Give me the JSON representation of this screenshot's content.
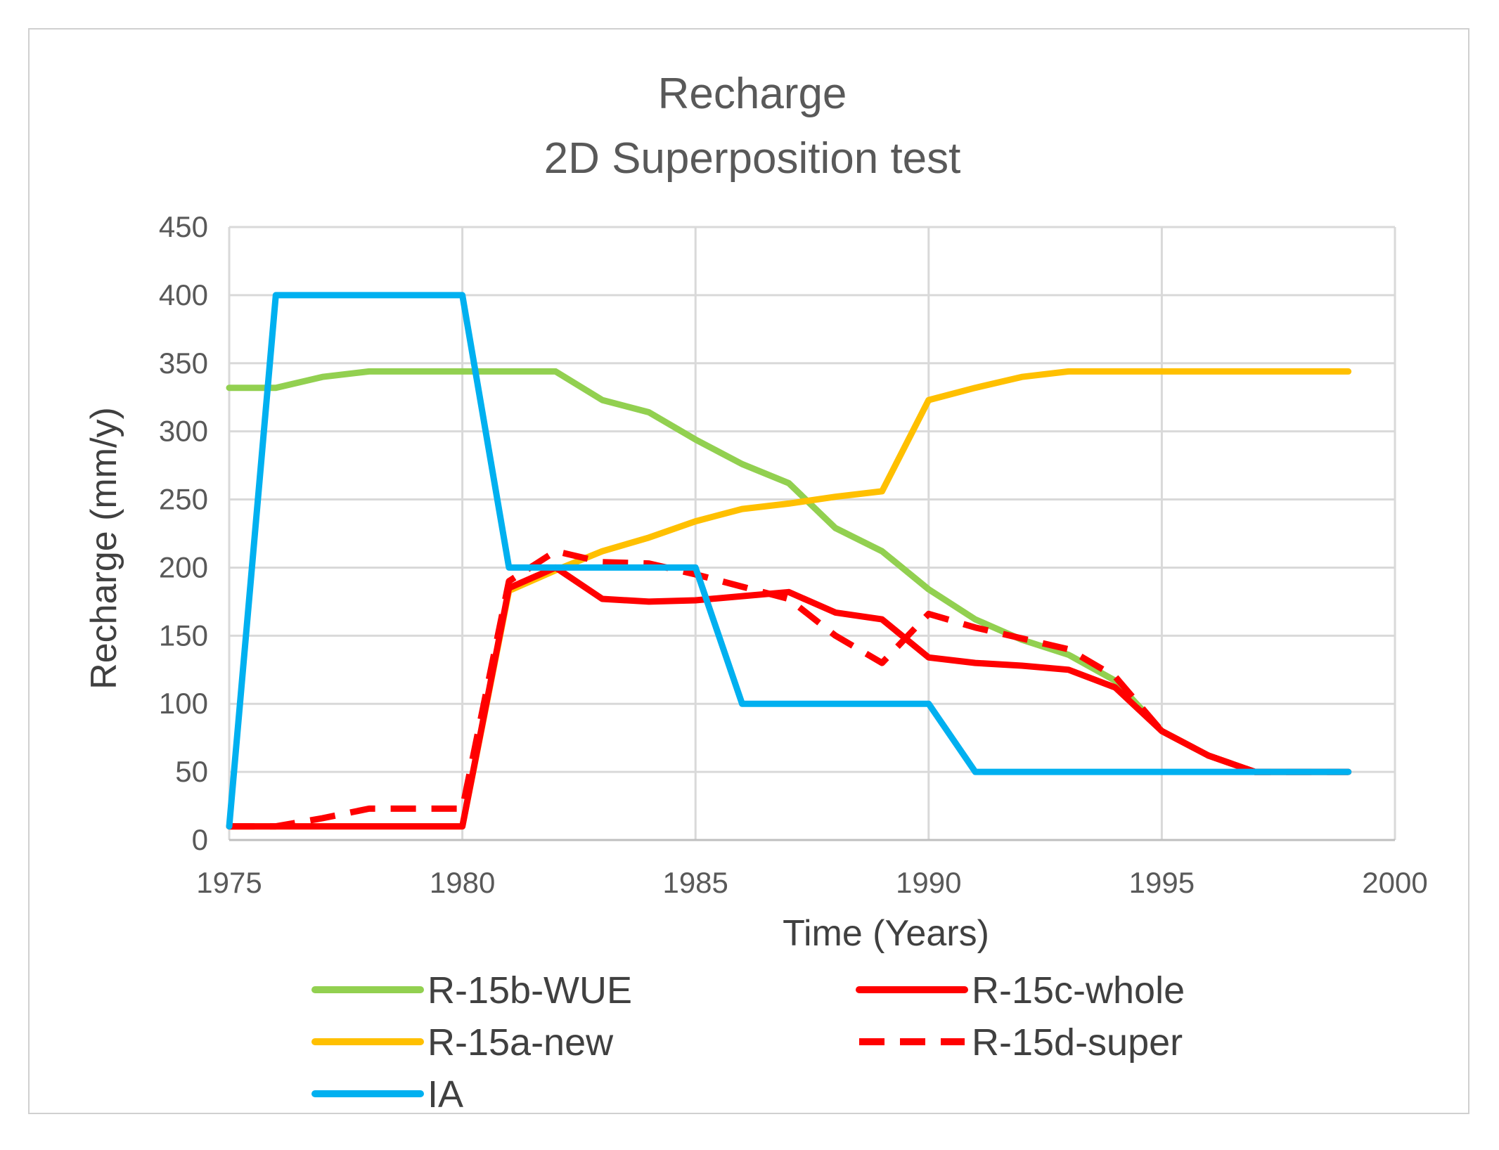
{
  "chart_data": {
    "type": "line",
    "title": "Recharge",
    "subtitle": "2D Superposition  test",
    "xlabel": "Time (Years)",
    "ylabel": "Recharge (mm/y)",
    "xlim": [
      1975,
      2000
    ],
    "ylim": [
      0,
      450
    ],
    "xticks": [
      1975,
      1980,
      1985,
      1990,
      1995,
      2000
    ],
    "yticks": [
      0,
      50,
      100,
      150,
      200,
      250,
      300,
      350,
      400,
      450
    ],
    "grid": true,
    "legend_position": "bottom",
    "series": [
      {
        "name": "R-15b-WUE",
        "color": "#92d050",
        "dash": "solid",
        "x": [
          1975,
          1976,
          1977,
          1978,
          1979,
          1980,
          1981,
          1982,
          1983,
          1984,
          1985,
          1986,
          1987,
          1988,
          1989,
          1990,
          1991,
          1992,
          1993,
          1994,
          1995,
          1996,
          1997,
          1998,
          1999
        ],
        "y": [
          332,
          332,
          340,
          344,
          344,
          344,
          344,
          344,
          323,
          314,
          294,
          276,
          262,
          229,
          212,
          184,
          162,
          147,
          136,
          117,
          80,
          62,
          50,
          50,
          50
        ]
      },
      {
        "name": "R-15a-new",
        "color": "#ffc000",
        "dash": "solid",
        "x": [
          1975,
          1976,
          1977,
          1978,
          1979,
          1980,
          1981,
          1982,
          1983,
          1984,
          1985,
          1986,
          1987,
          1988,
          1989,
          1990,
          1991,
          1992,
          1993,
          1994,
          1995,
          1996,
          1997,
          1998,
          1999
        ],
        "y": [
          10,
          10,
          10,
          10,
          10,
          10,
          183,
          198,
          212,
          222,
          234,
          243,
          247,
          252,
          256,
          323,
          332,
          340,
          344,
          344,
          344,
          344,
          344,
          344,
          344
        ]
      },
      {
        "name": "IA",
        "color": "#00b0f0",
        "dash": "solid",
        "x": [
          1975,
          1976,
          1977,
          1978,
          1979,
          1980,
          1981,
          1982,
          1983,
          1984,
          1985,
          1986,
          1987,
          1988,
          1989,
          1990,
          1991,
          1992,
          1993,
          1994,
          1995,
          1996,
          1997,
          1998,
          1999
        ],
        "y": [
          10,
          400,
          400,
          400,
          400,
          400,
          200,
          200,
          200,
          200,
          200,
          100,
          100,
          100,
          100,
          100,
          50,
          50,
          50,
          50,
          50,
          50,
          50,
          50,
          50
        ]
      },
      {
        "name": "R-15c-whole",
        "color": "#ff0000",
        "dash": "solid",
        "x": [
          1975,
          1976,
          1977,
          1978,
          1979,
          1980,
          1981,
          1982,
          1983,
          1984,
          1985,
          1986,
          1987,
          1988,
          1989,
          1990,
          1991,
          1992,
          1993,
          1994,
          1995,
          1996,
          1997,
          1998,
          1999
        ],
        "y": [
          10,
          10,
          10,
          10,
          10,
          10,
          185,
          200,
          177,
          175,
          176,
          179,
          182,
          167,
          162,
          134,
          130,
          128,
          125,
          112,
          80,
          62,
          50,
          50,
          50
        ]
      },
      {
        "name": "R-15d-super",
        "color": "#ff0000",
        "dash": "dashed",
        "x": [
          1975,
          1976,
          1977,
          1978,
          1979,
          1980,
          1981,
          1982,
          1983,
          1984,
          1985,
          1986,
          1987,
          1988,
          1989,
          1990,
          1991,
          1992,
          1993,
          1994,
          1995,
          1996,
          1997,
          1998,
          1999
        ],
        "y": [
          10,
          10,
          16,
          23,
          23,
          23,
          190,
          212,
          204,
          203,
          195,
          186,
          177,
          150,
          130,
          166,
          156,
          148,
          140,
          120,
          80,
          62,
          50,
          50,
          50
        ]
      }
    ],
    "legend_order": [
      "R-15b-WUE",
      "R-15c-whole",
      "R-15a-new",
      "R-15d-super",
      "IA"
    ]
  }
}
